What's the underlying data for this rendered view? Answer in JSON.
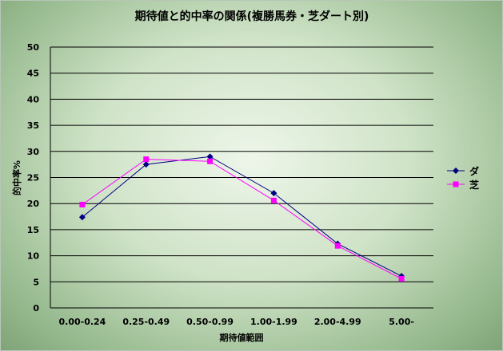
{
  "chart_data": {
    "type": "line",
    "title": "期待値と的中率の関係(複勝馬券・芝ダート別)",
    "xlabel": "期待値範囲",
    "ylabel": "的中率%",
    "categories": [
      "0.00-0.24",
      "0.25-0.49",
      "0.50-0.99",
      "1.00-1.99",
      "2.00-4.99",
      "5.00-"
    ],
    "ylim": [
      0,
      50
    ],
    "yticks": [
      0,
      5,
      10,
      15,
      20,
      25,
      30,
      35,
      40,
      45,
      50
    ],
    "grid": true,
    "legend": "right",
    "series": [
      {
        "name": "ダ",
        "color": "#000080",
        "marker": "diamond",
        "values": [
          17.4,
          27.5,
          29.0,
          22.0,
          12.3,
          6.1
        ]
      },
      {
        "name": "芝",
        "color": "#ff00ff",
        "marker": "square",
        "values": [
          19.8,
          28.5,
          28.1,
          20.6,
          11.9,
          5.6
        ]
      }
    ]
  }
}
